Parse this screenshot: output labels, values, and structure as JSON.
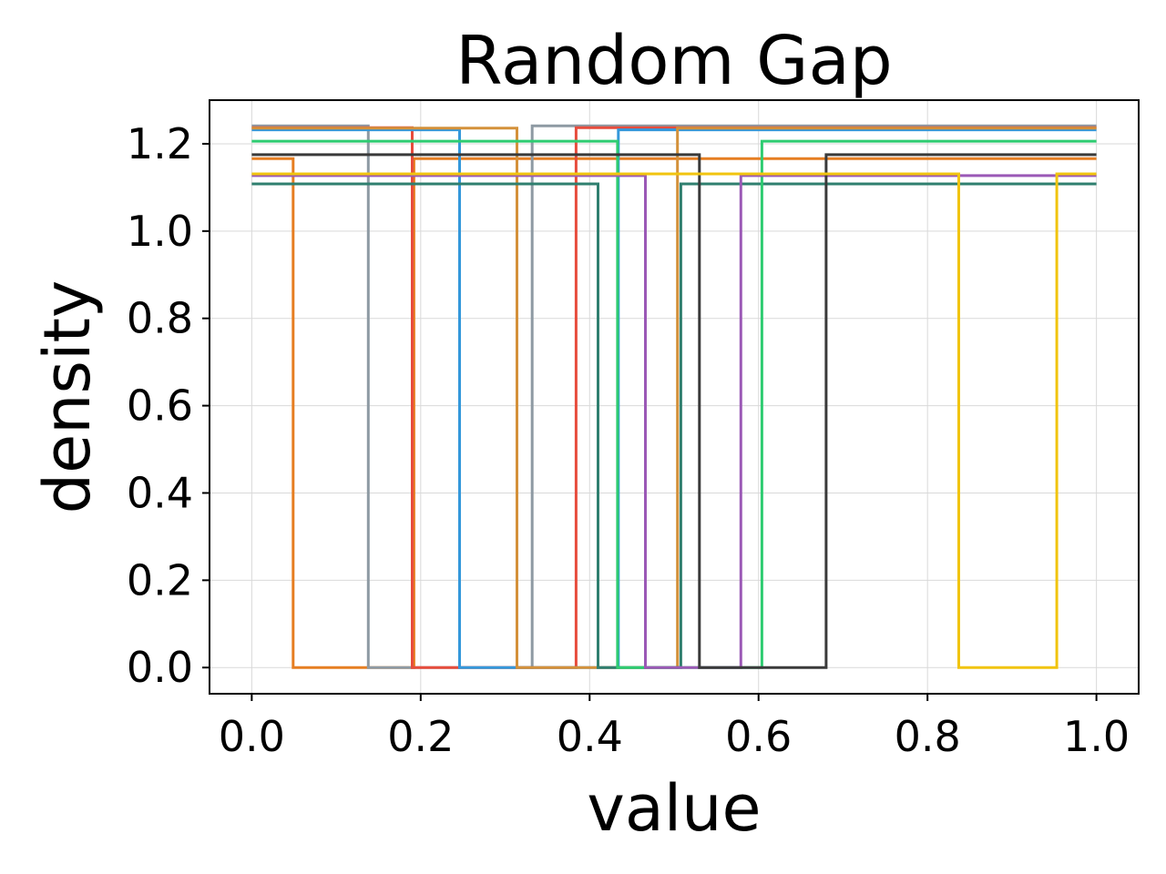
{
  "chart_data": {
    "type": "line",
    "title": "Random Gap",
    "xlabel": "value",
    "ylabel": "density",
    "xlim": [
      -0.05,
      1.05
    ],
    "ylim": [
      -0.06,
      1.3
    ],
    "grid": true,
    "legend": "none",
    "x_ticks": [
      "0.0",
      "0.2",
      "0.4",
      "0.6",
      "0.8",
      "1.0"
    ],
    "y_ticks": [
      "0.0",
      "0.2",
      "0.4",
      "0.6",
      "0.8",
      "1.0",
      "1.2"
    ],
    "series": [
      {
        "color": "#e67e22",
        "gap": [
          0.049,
          0.192
        ],
        "density": 1.166
      },
      {
        "color": "#8e9aa3",
        "gap": [
          0.138,
          0.332
        ],
        "density": 1.241
      },
      {
        "color": "#e74c3c",
        "gap": [
          0.19,
          0.384
        ],
        "density": 1.237
      },
      {
        "color": "#3498db",
        "gap": [
          0.246,
          0.434
        ],
        "density": 1.232
      },
      {
        "color": "#d4913a",
        "gap": [
          0.314,
          0.504
        ],
        "density": 1.236
      },
      {
        "color": "#2f7f6f",
        "gap": [
          0.41,
          0.508
        ],
        "density": 1.108
      },
      {
        "color": "#2ecc71",
        "gap": [
          0.433,
          0.604
        ],
        "density": 1.206
      },
      {
        "color": "#9b59b6",
        "gap": [
          0.466,
          0.579
        ],
        "density": 1.127
      },
      {
        "color": "#3a3a3a",
        "gap": [
          0.53,
          0.68
        ],
        "density": 1.175
      },
      {
        "color": "#f1c40f",
        "gap": [
          0.837,
          0.953
        ],
        "density": 1.131
      }
    ]
  }
}
